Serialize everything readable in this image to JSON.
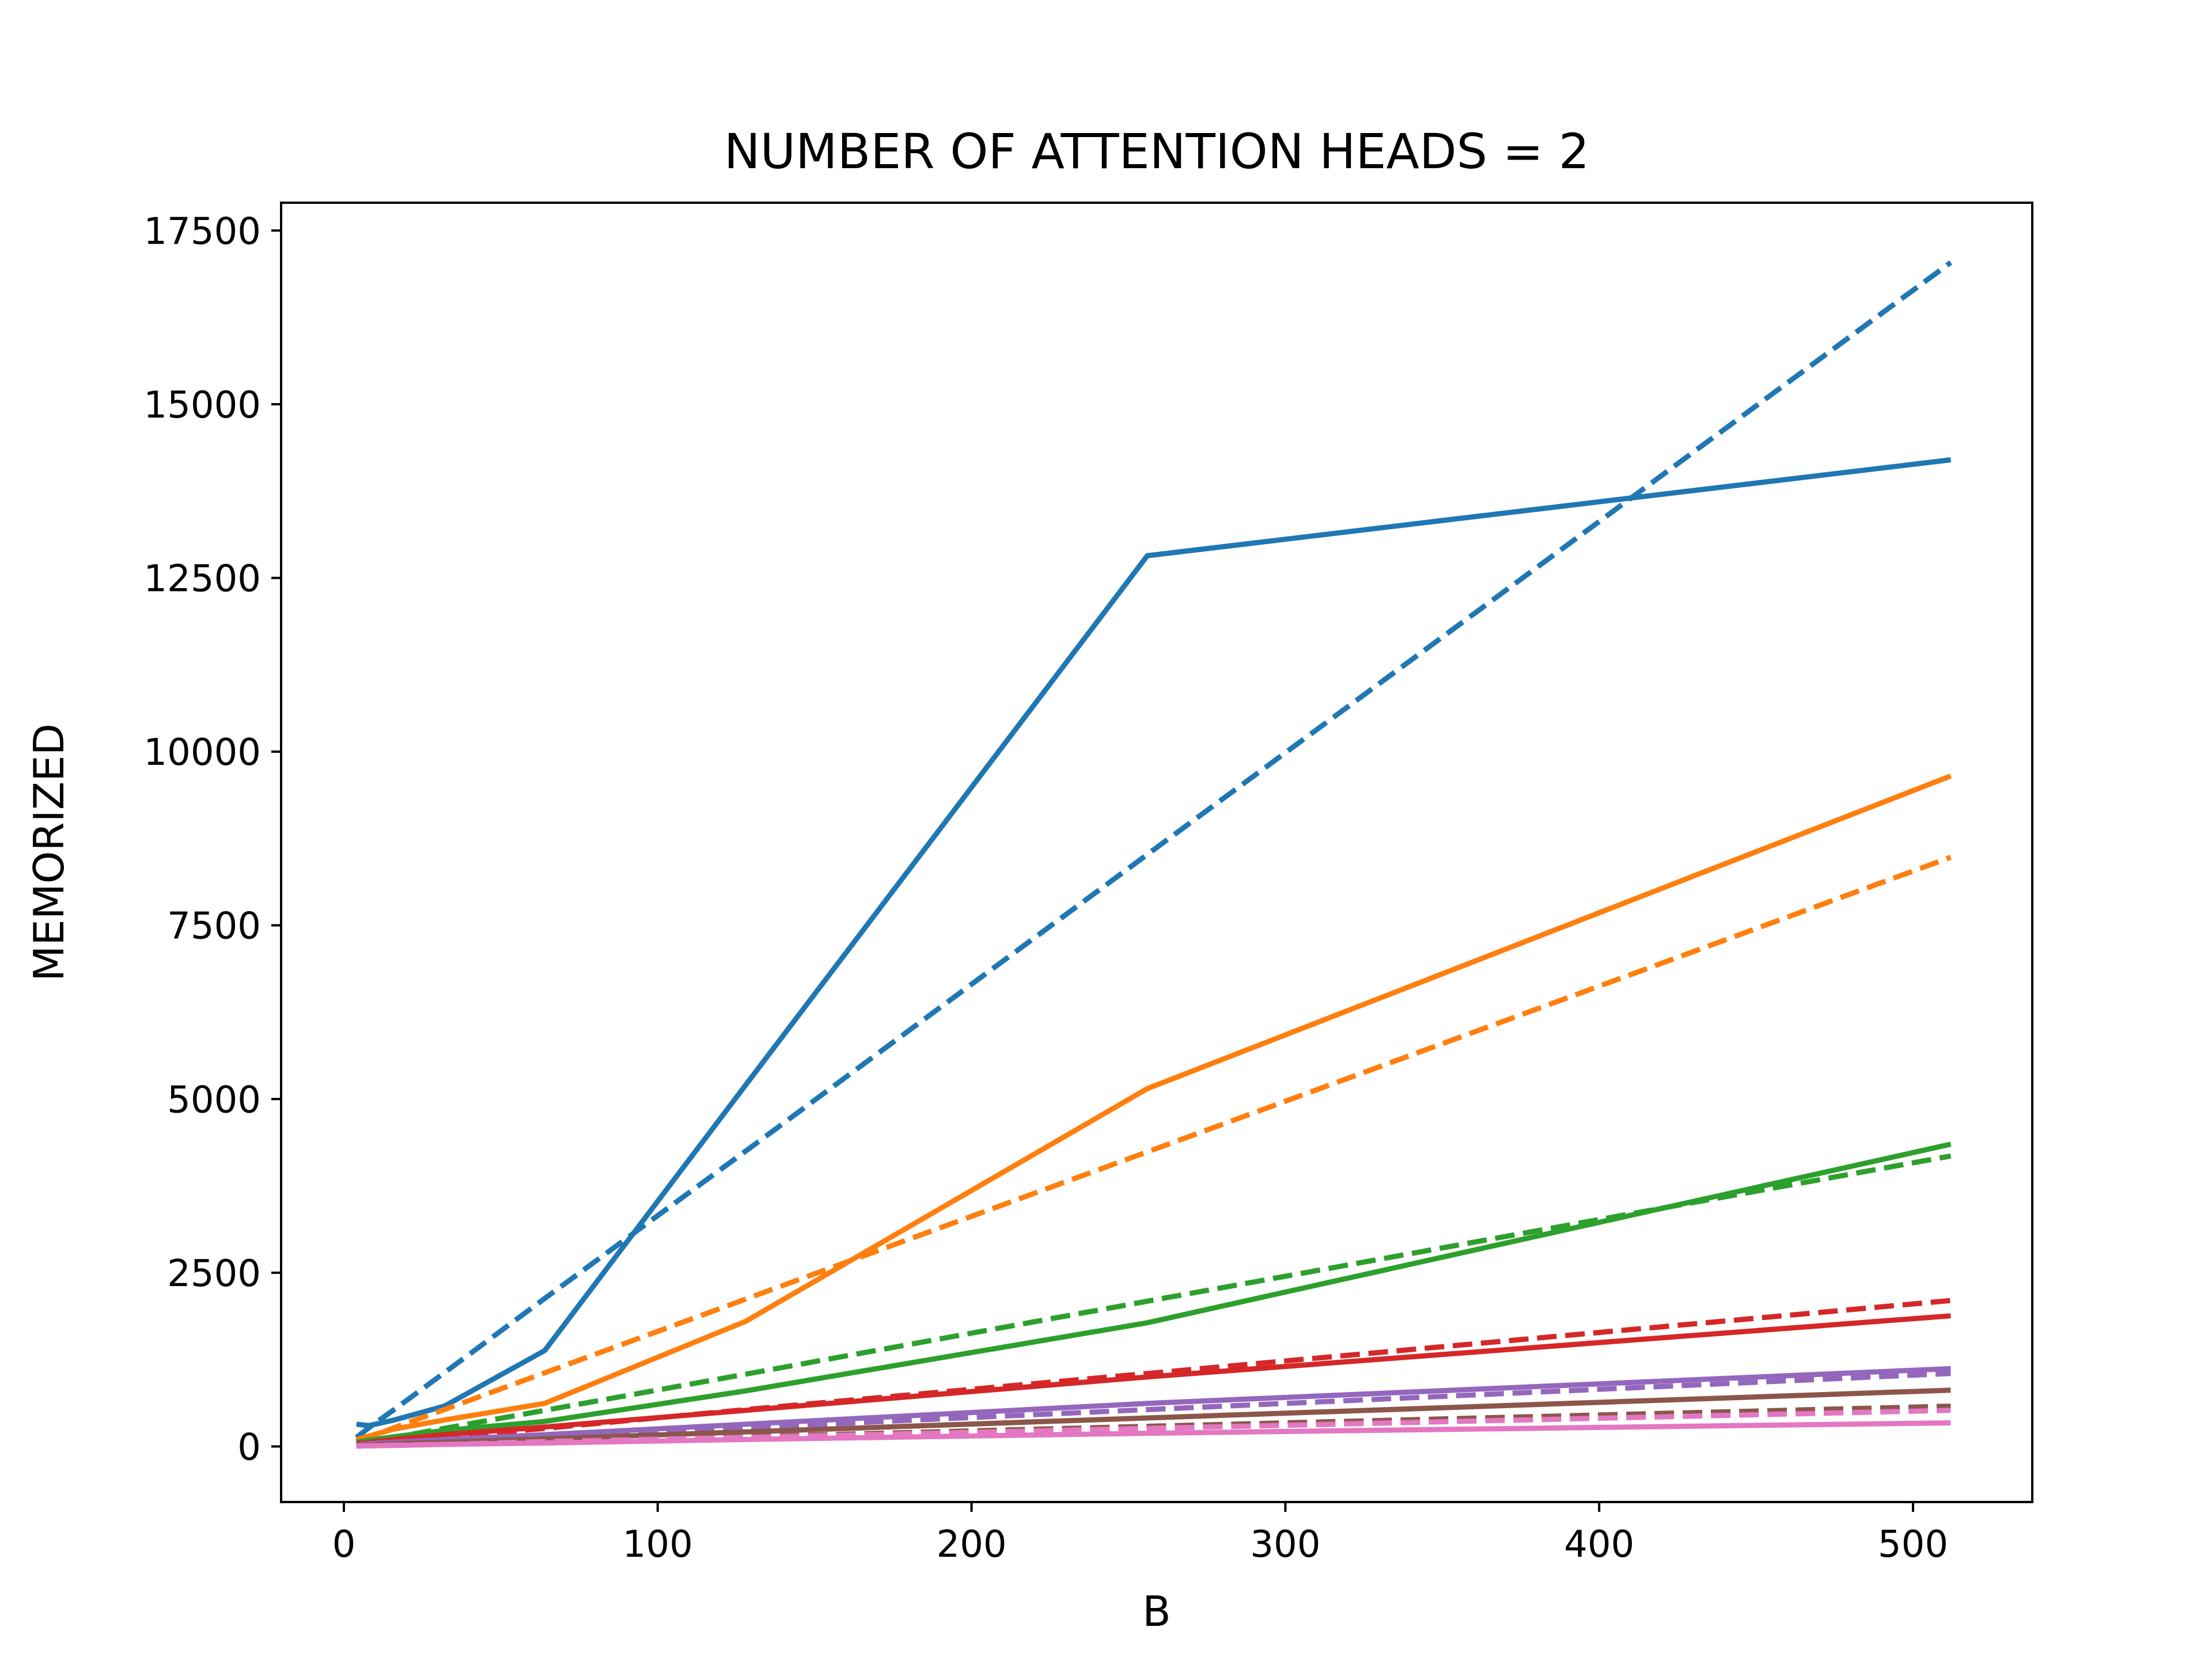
{
  "chart_data": {
    "type": "line",
    "title": "NUMBER OF ATTENTION HEADS = 2",
    "xlabel": "B",
    "ylabel": "MEMORIZED",
    "xlim": [
      -20,
      538
    ],
    "ylim": [
      -800,
      17900
    ],
    "xticks": [
      0,
      100,
      200,
      300,
      400,
      500
    ],
    "xtick_labels": [
      "0",
      "100",
      "200",
      "300",
      "400",
      "500"
    ],
    "yticks": [
      0,
      2500,
      5000,
      7500,
      10000,
      12500,
      15000,
      17500
    ],
    "ytick_labels": [
      "0",
      "2500",
      "5000",
      "7500",
      "10000",
      "12500",
      "15000",
      "17500"
    ],
    "grid": false,
    "x": [
      4,
      8,
      16,
      32,
      64,
      128,
      256,
      512
    ],
    "series": [
      {
        "style": "solid",
        "color": "#1f77b4",
        "values": [
          320,
          300,
          380,
          580,
          1380,
          5200,
          12820,
          14200
        ]
      },
      {
        "style": "dashed",
        "color": "#1f77b4",
        "values": [
          130,
          270,
          530,
          1060,
          2130,
          4250,
          8520,
          17040
        ]
      },
      {
        "style": "solid",
        "color": "#ff7f0e",
        "values": [
          100,
          150,
          250,
          380,
          620,
          1800,
          5150,
          9650
        ]
      },
      {
        "style": "dashed",
        "color": "#ff7f0e",
        "values": [
          70,
          130,
          270,
          530,
          1060,
          2120,
          4240,
          8480
        ]
      },
      {
        "style": "solid",
        "color": "#2ca02c",
        "values": [
          60,
          90,
          140,
          230,
          360,
          800,
          1780,
          4350
        ]
      },
      {
        "style": "dashed",
        "color": "#2ca02c",
        "values": [
          30,
          70,
          130,
          260,
          520,
          1040,
          2090,
          4180
        ]
      },
      {
        "style": "solid",
        "color": "#d62728",
        "values": [
          40,
          60,
          100,
          170,
          280,
          520,
          1000,
          1880
        ]
      },
      {
        "style": "dashed",
        "color": "#d62728",
        "values": [
          20,
          40,
          70,
          130,
          260,
          530,
          1050,
          2100
        ]
      },
      {
        "style": "solid",
        "color": "#9467bd",
        "values": [
          20,
          40,
          60,
          100,
          170,
          320,
          620,
          1120
        ]
      },
      {
        "style": "dashed",
        "color": "#9467bd",
        "values": [
          10,
          20,
          40,
          70,
          130,
          270,
          530,
          1050
        ]
      },
      {
        "style": "solid",
        "color": "#8c564b",
        "values": [
          10,
          20,
          40,
          60,
          110,
          210,
          410,
          810
        ]
      },
      {
        "style": "dashed",
        "color": "#8c564b",
        "values": [
          5,
          10,
          20,
          40,
          70,
          140,
          290,
          580
        ]
      },
      {
        "style": "solid",
        "color": "#e377c2",
        "values": [
          5,
          10,
          15,
          30,
          50,
          100,
          190,
          340
        ]
      },
      {
        "style": "dashed",
        "color": "#e377c2",
        "values": [
          5,
          10,
          20,
          30,
          70,
          130,
          260,
          520
        ]
      }
    ]
  }
}
